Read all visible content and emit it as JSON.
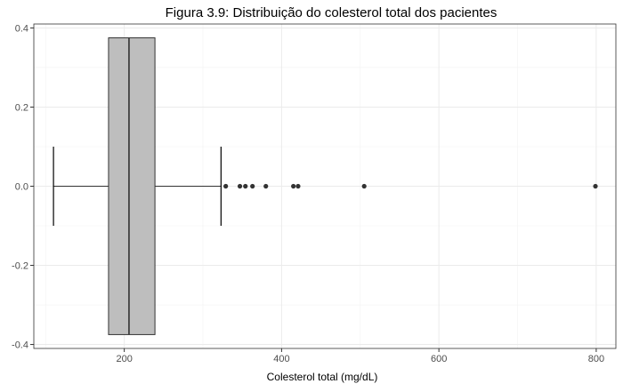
{
  "chart_data": {
    "type": "boxplot",
    "title": "Figura 3.9: Distribuição do colesterol total dos pacientes",
    "xlabel": "Colesterol total (mg/dL)",
    "ylabel": "",
    "xlim": [
      85,
      825
    ],
    "ylim": [
      -0.41,
      0.41
    ],
    "x_ticks": [
      200,
      400,
      600,
      800
    ],
    "y_ticks": [
      -0.4,
      -0.2,
      0.0,
      0.2,
      0.4
    ],
    "y_tick_labels": [
      "-0.4",
      "-0.2",
      "0.0",
      "0.2",
      "0.4"
    ],
    "grid": true,
    "box": {
      "whisker_low": 110,
      "q1": 180,
      "median": 206,
      "q3": 239,
      "whisker_high": 323,
      "y_extent": [
        -0.375,
        0.375
      ],
      "whisker_cap_extent": [
        -0.1,
        0.1
      ],
      "fill": "#bebebe",
      "stroke": "#333333"
    },
    "outliers": [
      329,
      347,
      354,
      363,
      380,
      415,
      421,
      505,
      799
    ],
    "outlier_color": "#333333"
  }
}
